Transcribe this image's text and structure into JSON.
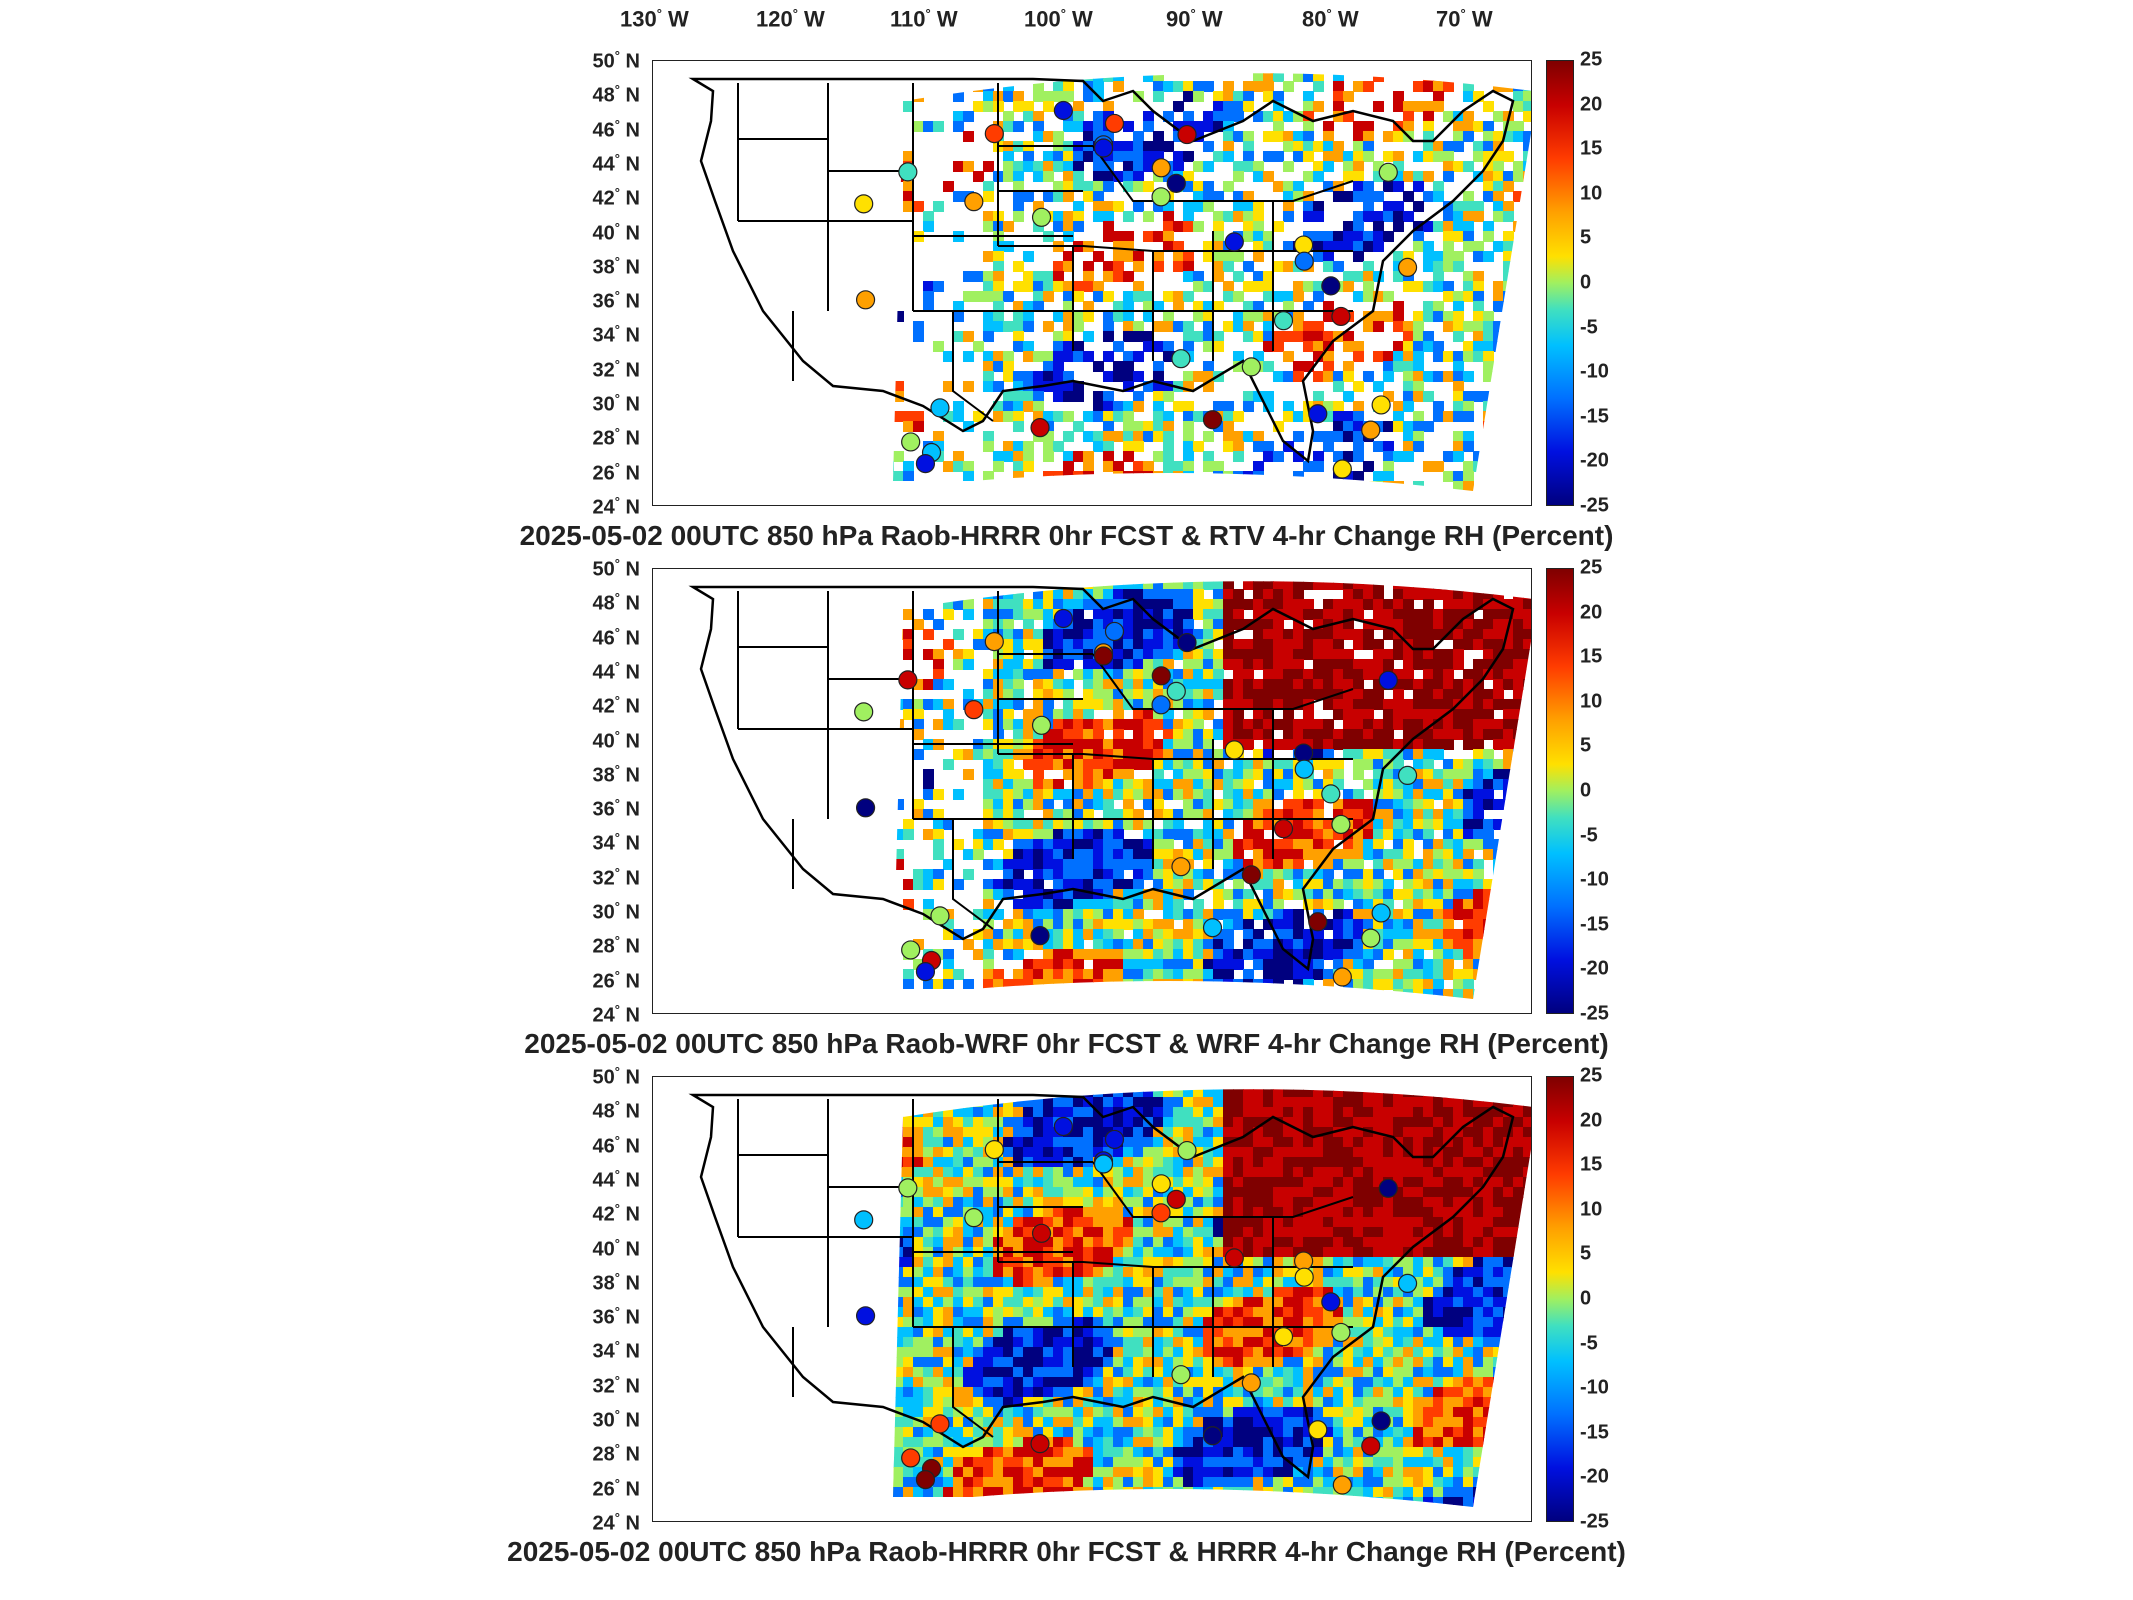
{
  "lon_labels": [
    "130",
    "120",
    "110",
    "100",
    "90",
    "80",
    "70"
  ],
  "lon_unit": "W",
  "lat_labels": [
    "50",
    "48",
    "46",
    "44",
    "42",
    "40",
    "38",
    "36",
    "34",
    "32",
    "30",
    "28",
    "26",
    "24"
  ],
  "lat_unit": "N",
  "colorbar_ticks": [
    "25",
    "20",
    "15",
    "10",
    "5",
    "0",
    "-5",
    "-10",
    "-15",
    "-20",
    "-25"
  ],
  "colorbar_colors": [
    "#7f0000",
    "#c80000",
    "#ff3c00",
    "#ffa000",
    "#ffe000",
    "#a0f060",
    "#40e0c0",
    "#00c0ff",
    "#0070ff",
    "#0010e0",
    "#00007f"
  ],
  "panels": [
    {
      "title": "2025-05-02 00UTC 850 hPa Raob-HRRR 0hr FCST & RTV 4-hr Change RH (Percent)"
    },
    {
      "title": "2025-05-02 00UTC 850 hPa Raob-WRF 0hr FCST & WRF 4-hr Change RH (Percent)"
    },
    {
      "title": "2025-05-02 00UTC 850 hPa Raob-HRRR 0hr FCST & HRRR 4-hr Change RH (Percent)"
    }
  ]
}
